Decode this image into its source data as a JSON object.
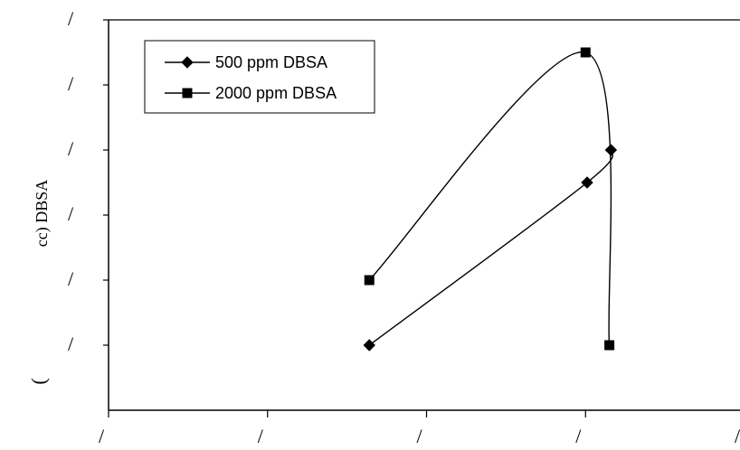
{
  "chart_data": {
    "type": "line",
    "y_axis_title": "cc) DBSA",
    "y_axis_extra_glyph": "(",
    "y_tick_labels": [
      "/",
      "/",
      "/",
      "/",
      "/",
      "/"
    ],
    "x_tick_labels": [
      "/",
      "/",
      "/",
      "/",
      "/"
    ],
    "x_tick_positions": [
      0,
      1,
      2,
      3,
      4
    ],
    "y_tick_positions": [
      1,
      2,
      3,
      4,
      5,
      6
    ],
    "xlim": [
      0,
      4
    ],
    "ylim": [
      0,
      6
    ],
    "grid": false,
    "legend_position": "top-left",
    "series": [
      {
        "name": "500 ppm DBSA",
        "marker": "diamond",
        "color": "#000000",
        "points": [
          {
            "x": 1.64,
            "y": 1.0
          },
          {
            "x": 3.01,
            "y": 3.5
          },
          {
            "x": 3.16,
            "y": 4.0
          }
        ]
      },
      {
        "name": "2000 ppm DBSA",
        "marker": "square",
        "color": "#000000",
        "points": [
          {
            "x": 1.64,
            "y": 2.0
          },
          {
            "x": 3.0,
            "y": 5.5
          },
          {
            "x": 3.15,
            "y": 1.0
          }
        ]
      }
    ]
  }
}
